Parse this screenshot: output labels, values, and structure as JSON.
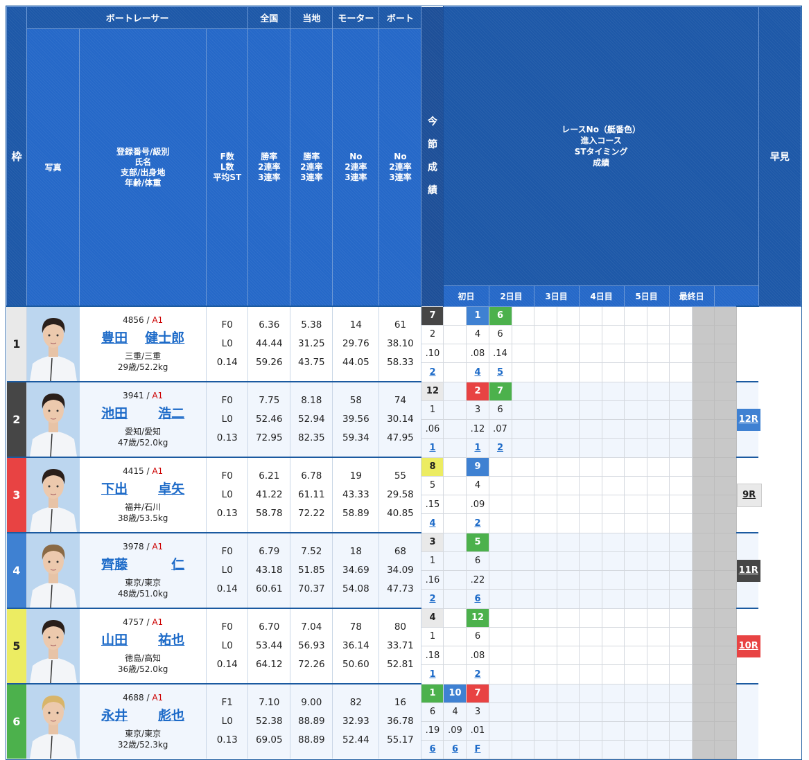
{
  "header": {
    "frame": "枠",
    "racer": "ボートレーサー",
    "national": "全国",
    "local": "当地",
    "motor": "モーター",
    "boat": "ボート",
    "photo": "写真",
    "info_lines": [
      "登録番号/級別",
      "氏名",
      "支部/出身地",
      "年齢/体重"
    ],
    "fl_lines": [
      "F数",
      "L数",
      "平均ST"
    ],
    "national_lines": [
      "勝率",
      "2連率",
      "3連率"
    ],
    "local_lines": [
      "勝率",
      "2連率",
      "3連率"
    ],
    "motor_lines": [
      "No",
      "2連率",
      "3連率"
    ],
    "boat_lines": [
      "No",
      "2連率",
      "3連率"
    ],
    "series_results": [
      "今",
      "節",
      "成",
      "績"
    ],
    "race_info_lines": [
      "レースNo（艇番色）",
      "進入コース",
      "STタイミング",
      "成績"
    ],
    "days": [
      "初日",
      "2日目",
      "3日目",
      "4日目",
      "5日目",
      "最終日"
    ],
    "hayami": "早見"
  },
  "boat_colors": {
    "1": "#e9e9e9",
    "2": "#464646",
    "3": "#e84343",
    "4": "#3f81d2",
    "5": "#ecec62",
    "6": "#4cb14c"
  },
  "boat_text_colors": {
    "1": "#222222",
    "2": "#ffffff",
    "3": "#ffffff",
    "4": "#ffffff",
    "5": "#222222",
    "6": "#ffffff"
  },
  "racers": [
    {
      "frame": "1",
      "reg": "4856",
      "class": "A1",
      "family": "豊田",
      "given": "健士郎",
      "branch": "三重/三重",
      "age_weight": "29歳/52.2kg",
      "f": "F0",
      "l": "L0",
      "st": "0.14",
      "national": [
        "6.36",
        "44.44",
        "59.26"
      ],
      "local": [
        "5.38",
        "31.25",
        "43.75"
      ],
      "motor": [
        "14",
        "29.76",
        "44.05"
      ],
      "boat": [
        "61",
        "38.10",
        "58.33"
      ],
      "hayami": null,
      "results": [
        {
          "race": "7",
          "color": "2",
          "course": "2",
          "st": ".10",
          "finish": "2"
        },
        null,
        {
          "race": "1",
          "color": "4",
          "course": "4",
          "st": ".08",
          "finish": "4"
        },
        {
          "race": "6",
          "color": "6",
          "course": "6",
          "st": ".14",
          "finish": "5"
        },
        null,
        null,
        null,
        null,
        null,
        null,
        null,
        null
      ]
    },
    {
      "frame": "2",
      "reg": "3941",
      "class": "A1",
      "family": "池田",
      "given": "浩二",
      "branch": "愛知/愛知",
      "age_weight": "47歳/52.0kg",
      "f": "F0",
      "l": "L0",
      "st": "0.13",
      "national": [
        "7.75",
        "52.46",
        "72.95"
      ],
      "local": [
        "8.18",
        "52.94",
        "82.35"
      ],
      "motor": [
        "58",
        "39.56",
        "59.34"
      ],
      "boat": [
        "74",
        "30.14",
        "47.95"
      ],
      "hayami": {
        "label": "12R",
        "color": "4"
      },
      "results": [
        {
          "race": "12",
          "color": "1",
          "course": "1",
          "st": ".06",
          "finish": "1"
        },
        null,
        {
          "race": "2",
          "color": "3",
          "course": "3",
          "st": ".12",
          "finish": "1"
        },
        {
          "race": "7",
          "color": "6",
          "course": "6",
          "st": ".07",
          "finish": "2"
        },
        null,
        null,
        null,
        null,
        null,
        null,
        null,
        null
      ]
    },
    {
      "frame": "3",
      "reg": "4415",
      "class": "A1",
      "family": "下出",
      "given": "卓矢",
      "branch": "福井/石川",
      "age_weight": "38歳/53.5kg",
      "f": "F0",
      "l": "L0",
      "st": "0.13",
      "national": [
        "6.21",
        "41.22",
        "58.78"
      ],
      "local": [
        "6.78",
        "61.11",
        "72.22"
      ],
      "motor": [
        "19",
        "43.33",
        "58.89"
      ],
      "boat": [
        "55",
        "29.58",
        "40.85"
      ],
      "hayami": {
        "label": "9R",
        "color": "1"
      },
      "results": [
        {
          "race": "8",
          "color": "5",
          "course": "5",
          "st": ".15",
          "finish": "4"
        },
        null,
        {
          "race": "9",
          "color": "4",
          "course": "4",
          "st": ".09",
          "finish": "2"
        },
        null,
        null,
        null,
        null,
        null,
        null,
        null,
        null,
        null
      ]
    },
    {
      "frame": "4",
      "reg": "3978",
      "class": "A1",
      "family": "齊藤",
      "given": "仁",
      "branch": "東京/東京",
      "age_weight": "48歳/51.0kg",
      "f": "F0",
      "l": "L0",
      "st": "0.14",
      "national": [
        "6.79",
        "43.18",
        "60.61"
      ],
      "local": [
        "7.52",
        "51.85",
        "70.37"
      ],
      "motor": [
        "18",
        "34.69",
        "54.08"
      ],
      "boat": [
        "68",
        "34.09",
        "47.73"
      ],
      "hayami": {
        "label": "11R",
        "color": "2"
      },
      "results": [
        {
          "race": "3",
          "color": "1",
          "course": "1",
          "st": ".16",
          "finish": "2"
        },
        null,
        {
          "race": "5",
          "color": "6",
          "course": "6",
          "st": ".22",
          "finish": "6"
        },
        null,
        null,
        null,
        null,
        null,
        null,
        null,
        null,
        null
      ]
    },
    {
      "frame": "5",
      "reg": "4757",
      "class": "A1",
      "family": "山田",
      "given": "祐也",
      "branch": "徳島/高知",
      "age_weight": "36歳/52.0kg",
      "f": "F0",
      "l": "L0",
      "st": "0.14",
      "national": [
        "6.70",
        "53.44",
        "64.12"
      ],
      "local": [
        "7.04",
        "56.93",
        "72.26"
      ],
      "motor": [
        "78",
        "36.14",
        "50.60"
      ],
      "boat": [
        "80",
        "33.71",
        "52.81"
      ],
      "hayami": {
        "label": "10R",
        "color": "3"
      },
      "results": [
        {
          "race": "4",
          "color": "1",
          "course": "1",
          "st": ".18",
          "finish": "1"
        },
        null,
        {
          "race": "12",
          "color": "6",
          "course": "6",
          "st": ".08",
          "finish": "2"
        },
        null,
        null,
        null,
        null,
        null,
        null,
        null,
        null,
        null
      ]
    },
    {
      "frame": "6",
      "reg": "4688",
      "class": "A1",
      "family": "永井",
      "given": "彪也",
      "branch": "東京/東京",
      "age_weight": "32歳/52.3kg",
      "f": "F1",
      "l": "L0",
      "st": "0.13",
      "national": [
        "7.10",
        "52.38",
        "69.05"
      ],
      "local": [
        "9.00",
        "88.89",
        "88.89"
      ],
      "motor": [
        "82",
        "32.93",
        "52.44"
      ],
      "boat": [
        "16",
        "36.78",
        "55.17"
      ],
      "hayami": null,
      "results": [
        {
          "race": "1",
          "color": "6",
          "course": "6",
          "st": ".19",
          "finish": "6"
        },
        {
          "race": "10",
          "color": "4",
          "course": "4",
          "st": ".09",
          "finish": "6"
        },
        {
          "race": "7",
          "color": "3",
          "course": "3",
          "st": ".01",
          "finish": "F"
        },
        null,
        null,
        null,
        null,
        null,
        null,
        null,
        null,
        null
      ]
    }
  ]
}
